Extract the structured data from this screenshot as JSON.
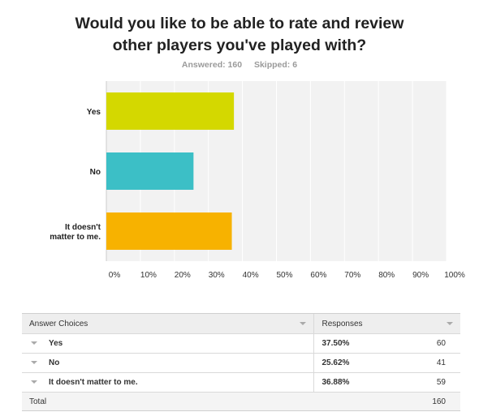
{
  "question": {
    "line1": "Would you like to be able to rate and review",
    "line2": "other players you've played with?"
  },
  "stats": {
    "answered": "Answered: 160",
    "skipped": "Skipped: 6"
  },
  "chart_data": {
    "type": "bar",
    "orientation": "horizontal",
    "categories": [
      "Yes",
      "No",
      "It doesn't matter to me."
    ],
    "category_label_lines": [
      [
        "Yes"
      ],
      [
        "No"
      ],
      [
        "It doesn't",
        "matter to me."
      ]
    ],
    "values": [
      37.5,
      25.62,
      36.88
    ],
    "colors": [
      "#d4d800",
      "#3cbfc6",
      "#f7b200"
    ],
    "xlim": [
      0,
      100
    ],
    "x_ticks": [
      "0%",
      "10%",
      "20%",
      "30%",
      "40%",
      "50%",
      "60%",
      "70%",
      "80%",
      "90%",
      "100%"
    ],
    "grid": true
  },
  "table": {
    "headers": {
      "choices": "Answer Choices",
      "responses": "Responses"
    },
    "rows": [
      {
        "label": "Yes",
        "percent": "37.50%",
        "count": "60"
      },
      {
        "label": "No",
        "percent": "25.62%",
        "count": "41"
      },
      {
        "label": "It doesn't matter to me.",
        "percent": "36.88%",
        "count": "59"
      }
    ],
    "total": {
      "label": "Total",
      "count": "160"
    }
  }
}
